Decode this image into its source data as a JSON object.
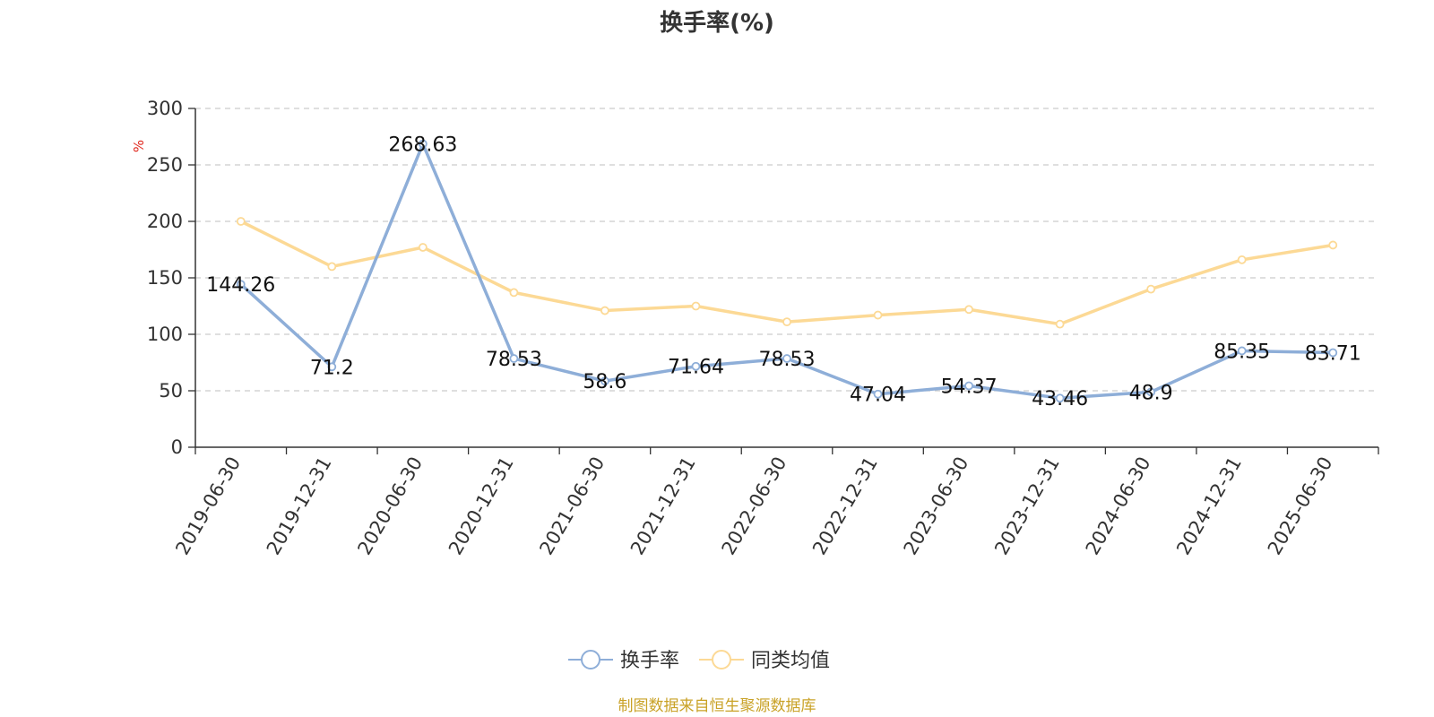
{
  "chart_data": {
    "type": "line",
    "title": "换手率(%)",
    "ylabel": "%",
    "ylim": [
      0,
      300
    ],
    "yticks": [
      0,
      50,
      100,
      150,
      200,
      250,
      300
    ],
    "grid": true,
    "legend_position": "bottom-center",
    "categories": [
      "2019-06-30",
      "2019-12-31",
      "2020-06-30",
      "2020-12-31",
      "2021-06-30",
      "2021-12-31",
      "2022-06-30",
      "2022-12-31",
      "2023-06-30",
      "2023-12-31",
      "2024-06-30",
      "2024-12-31",
      "2025-06-30"
    ],
    "series": [
      {
        "name": "换手率",
        "color": "#8eaed8",
        "show_labels": true,
        "values": [
          144.26,
          71.2,
          268.63,
          78.53,
          58.6,
          71.64,
          78.53,
          47.04,
          54.37,
          43.46,
          48.9,
          85.35,
          83.71
        ],
        "labels": [
          "144.26",
          "71.2",
          "268.63",
          "78.53",
          "58.6",
          "71.64",
          "78.53",
          "47.04",
          "54.37",
          "43.46",
          "48.9",
          "85.35",
          "83.71"
        ]
      },
      {
        "name": "同类均值",
        "color": "#fcd995",
        "show_labels": false,
        "values": [
          200,
          160,
          177,
          137,
          121,
          125,
          111,
          117,
          122,
          109,
          140,
          166,
          179
        ]
      }
    ]
  },
  "source_note": "制图数据来自恒生聚源数据库"
}
